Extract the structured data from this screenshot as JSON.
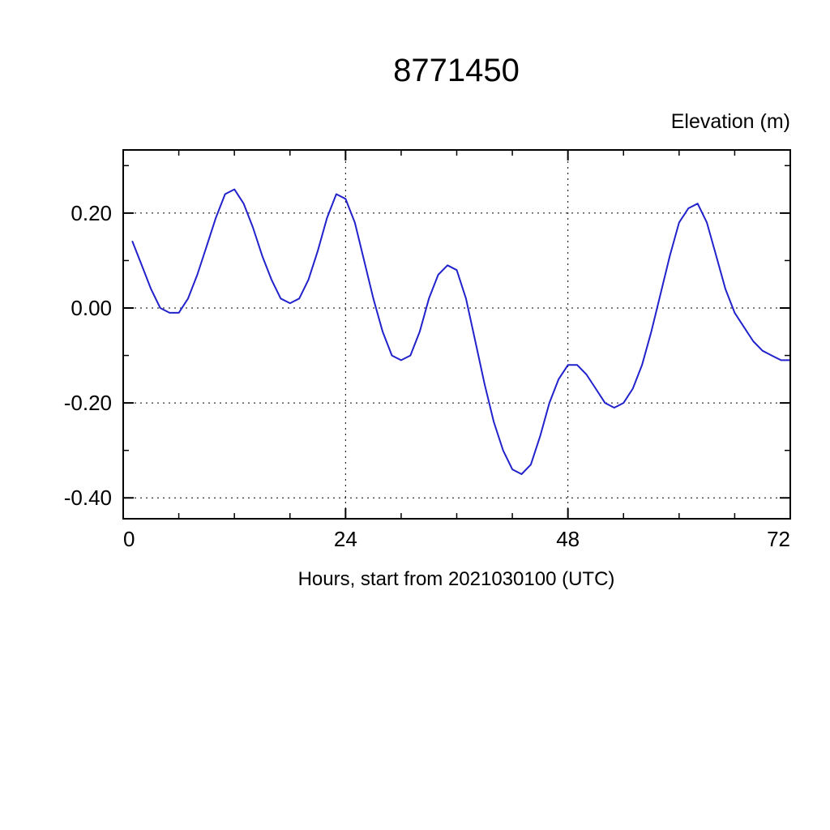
{
  "title": "8771450",
  "right_label": "Elevation (m)",
  "xlabel": "Hours, start from 2021030100 (UTC)",
  "chart_data": {
    "type": "line",
    "title": "8771450",
    "ylabel_right": "Elevation (m)",
    "xlabel": "Hours, start from 2021030100 (UTC)",
    "xlim": [
      0,
      72
    ],
    "ylim": [
      -0.444,
      0.333
    ],
    "xticks_major": [
      0,
      24,
      48,
      72
    ],
    "xtick_labels": [
      "0",
      "24",
      "48",
      "72"
    ],
    "xticks_minor_step": 6,
    "yticks_major": [
      0.2,
      0.0,
      -0.2,
      -0.4
    ],
    "ytick_labels": [
      "0.20",
      "0.00",
      "-0.20",
      "-0.40"
    ],
    "yticks_minor": [
      0.3,
      0.1,
      -0.1,
      -0.3
    ],
    "x_gridlines": [
      24,
      48
    ],
    "y_gridlines": [
      0.2,
      0.0,
      -0.2,
      -0.4
    ],
    "grid_style": "dashed",
    "legend": "none",
    "line_color": "#2222cc",
    "frame_color": "#000000",
    "series": [
      {
        "name": "elevation",
        "x": [
          1,
          2,
          3,
          4,
          5,
          6,
          7,
          8,
          9,
          10,
          11,
          12,
          13,
          14,
          15,
          16,
          17,
          18,
          19,
          20,
          21,
          22,
          23,
          24,
          25,
          26,
          27,
          28,
          29,
          30,
          31,
          32,
          33,
          34,
          35,
          36,
          37,
          38,
          39,
          40,
          41,
          42,
          43,
          44,
          45,
          46,
          47,
          48,
          49,
          50,
          51,
          52,
          53,
          54,
          55,
          56,
          57,
          58,
          59,
          60,
          61,
          62,
          63,
          64,
          65,
          66,
          67,
          68,
          69,
          70,
          71,
          72
        ],
        "values": [
          0.14,
          0.09,
          0.04,
          0.0,
          -0.01,
          -0.01,
          0.02,
          0.07,
          0.13,
          0.19,
          0.24,
          0.25,
          0.22,
          0.17,
          0.11,
          0.06,
          0.02,
          0.01,
          0.02,
          0.06,
          0.12,
          0.19,
          0.24,
          0.23,
          0.18,
          0.1,
          0.02,
          -0.05,
          -0.1,
          -0.11,
          -0.1,
          -0.05,
          0.02,
          0.07,
          0.09,
          0.08,
          0.02,
          -0.07,
          -0.16,
          -0.24,
          -0.3,
          -0.34,
          -0.35,
          -0.33,
          -0.27,
          -0.2,
          -0.15,
          -0.12,
          -0.12,
          -0.14,
          -0.17,
          -0.2,
          -0.21,
          -0.2,
          -0.17,
          -0.12,
          -0.05,
          0.03,
          0.11,
          0.18,
          0.21,
          0.22,
          0.18,
          0.11,
          0.04,
          -0.01,
          -0.04,
          -0.07,
          -0.09,
          -0.1,
          -0.11,
          -0.11
        ]
      }
    ]
  }
}
